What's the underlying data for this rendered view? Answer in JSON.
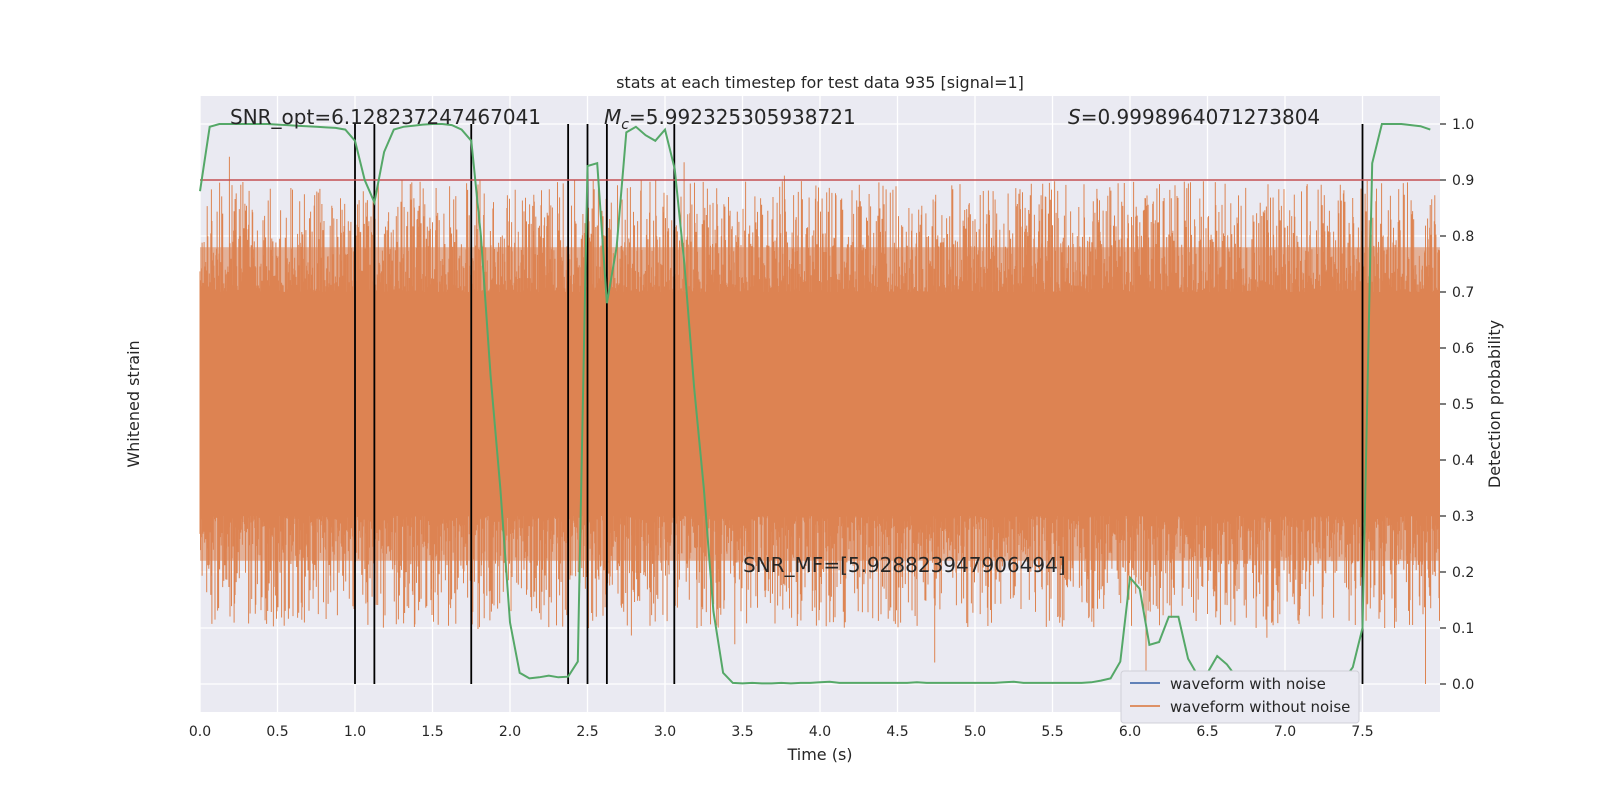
{
  "chart_data": {
    "type": "line",
    "title": "stats at each timestep for test data 935 [signal=1]",
    "xlabel": "Time (s)",
    "ylabel_left": "Whitened strain",
    "ylabel_right": "Detection probability",
    "xlim": [
      0,
      8
    ],
    "ylim_right": [
      -0.05,
      1.05
    ],
    "x_ticks": [
      "0.0",
      "0.5",
      "1.0",
      "1.5",
      "2.0",
      "2.5",
      "3.0",
      "3.5",
      "4.0",
      "4.5",
      "5.0",
      "5.5",
      "6.0",
      "6.5",
      "7.0",
      "7.5"
    ],
    "x_tick_values": [
      0,
      0.5,
      1,
      1.5,
      2,
      2.5,
      3,
      3.5,
      4,
      4.5,
      5,
      5.5,
      6,
      6.5,
      7,
      7.5
    ],
    "y_right_ticks": [
      "0.0",
      "0.1",
      "0.2",
      "0.3",
      "0.4",
      "0.5",
      "0.6",
      "0.7",
      "0.8",
      "0.9",
      "1.0"
    ],
    "y_right_tick_values": [
      0,
      0.1,
      0.2,
      0.3,
      0.4,
      0.5,
      0.6,
      0.7,
      0.8,
      0.9,
      1.0
    ],
    "threshold": 0.9,
    "grid": true,
    "legend_position": "lower-right",
    "annotations": {
      "snr_opt": "SNR_opt=6.128237247467041",
      "mc_symbol": "M",
      "mc_subscript": "c",
      "mc_value": "=5.992325305938721",
      "s_symbol": "S",
      "s_value": "=0.9998964071273804",
      "snr_mf": "SNR_MF=[5.928823947906494]"
    },
    "vertical_lines": [
      1.0,
      1.125,
      1.75,
      2.375,
      2.5,
      2.625,
      3.06,
      7.5
    ],
    "series": [
      {
        "name": "waveform with noise",
        "color": "#4c72b0",
        "values": []
      },
      {
        "name": "waveform without noise",
        "color": "#dd8452",
        "values": []
      },
      {
        "color": "#55a868",
        "x": [
          0,
          0.0625,
          0.125,
          0.1875,
          0.25,
          0.3125,
          0.375,
          0.4375,
          0.5,
          0.5625,
          0.625,
          0.6875,
          0.75,
          0.8125,
          0.875,
          0.9375,
          1.0,
          1.0625,
          1.125,
          1.1875,
          1.25,
          1.3125,
          1.375,
          1.4375,
          1.5,
          1.5625,
          1.625,
          1.6875,
          1.75,
          1.8125,
          1.875,
          1.9375,
          2.0,
          2.0625,
          2.125,
          2.1875,
          2.25,
          2.3125,
          2.375,
          2.4375,
          2.5,
          2.5625,
          2.625,
          2.6875,
          2.75,
          2.8125,
          2.875,
          2.9375,
          3.0,
          3.0625,
          3.125,
          3.1875,
          3.25,
          3.3125,
          3.375,
          3.4375,
          3.5,
          3.5625,
          3.625,
          3.6875,
          3.75,
          3.8125,
          3.875,
          3.9375,
          4.0,
          4.0625,
          4.125,
          4.1875,
          4.25,
          4.3125,
          4.375,
          4.4375,
          4.5,
          4.5625,
          4.625,
          4.6875,
          4.75,
          4.8125,
          4.875,
          4.9375,
          5.0,
          5.0625,
          5.125,
          5.1875,
          5.25,
          5.3125,
          5.375,
          5.4375,
          5.5,
          5.5625,
          5.625,
          5.6875,
          5.75,
          5.8125,
          5.875,
          5.9375,
          6.0,
          6.0625,
          6.125,
          6.1875,
          6.25,
          6.3125,
          6.375,
          6.4375,
          6.5,
          6.5625,
          6.625,
          6.6875,
          6.75,
          6.8125,
          6.875,
          6.9375,
          7.0,
          7.0625,
          7.125,
          7.1875,
          7.25,
          7.3125,
          7.375,
          7.4375,
          7.5,
          7.5625,
          7.625,
          7.6875,
          7.75,
          7.8125,
          7.875,
          7.9375
        ],
        "values": [
          0.88,
          0.995,
          1.0,
          1.0,
          1.0,
          1.0,
          1.0,
          1.0,
          0.999,
          0.998,
          0.997,
          0.996,
          0.995,
          0.994,
          0.993,
          0.99,
          0.97,
          0.9,
          0.86,
          0.95,
          0.99,
          0.995,
          0.997,
          0.999,
          1.0,
          1.0,
          0.998,
          0.99,
          0.97,
          0.8,
          0.55,
          0.35,
          0.11,
          0.02,
          0.01,
          0.012,
          0.015,
          0.012,
          0.013,
          0.04,
          0.925,
          0.93,
          0.68,
          0.78,
          0.985,
          0.995,
          0.98,
          0.97,
          0.99,
          0.92,
          0.75,
          0.53,
          0.35,
          0.13,
          0.02,
          0.002,
          0.001,
          0.002,
          0.001,
          0.001,
          0.002,
          0.001,
          0.002,
          0.002,
          0.003,
          0.004,
          0.002,
          0.002,
          0.002,
          0.002,
          0.002,
          0.002,
          0.002,
          0.002,
          0.003,
          0.002,
          0.002,
          0.002,
          0.002,
          0.002,
          0.002,
          0.002,
          0.002,
          0.003,
          0.004,
          0.002,
          0.002,
          0.002,
          0.002,
          0.002,
          0.002,
          0.002,
          0.003,
          0.006,
          0.01,
          0.04,
          0.19,
          0.17,
          0.07,
          0.075,
          0.12,
          0.12,
          0.045,
          0.015,
          0.02,
          0.05,
          0.035,
          0.012,
          0.005,
          0.005,
          0.005,
          0.005,
          0.005,
          0.005,
          0.004,
          0.004,
          0.004,
          0.004,
          0.006,
          0.03,
          0.1,
          0.93,
          1.0,
          1.0,
          1.0,
          0.998,
          0.996,
          0.99
        ]
      }
    ]
  }
}
